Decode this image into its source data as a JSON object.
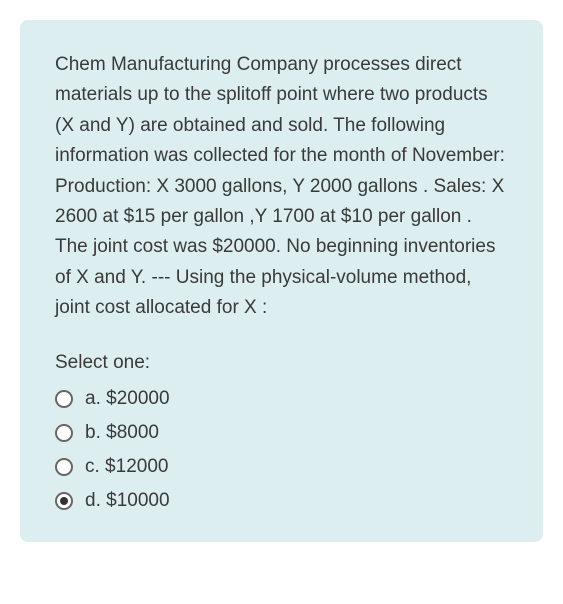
{
  "card": {
    "background_color": "#dceef0",
    "text_color": "#3a3a3a",
    "border_radius": 8
  },
  "question": {
    "text": "Chem Manufacturing Company processes direct materials up to the splitoff point where two products (X and Y) are obtained and sold. The following information was collected for the month of November: Production: X 3000 gallons, Y 2000 gallons . Sales: X 2600 at $15 per gallon ,Y 1700 at $10 per gallon . The joint cost was $20000. No beginning inventories of X and Y. --- Using the physical-volume method, joint cost allocated for X :"
  },
  "prompt": "Select one:",
  "options": [
    {
      "key": "a",
      "label": "a. $20000",
      "selected": false
    },
    {
      "key": "b",
      "label": "b. $8000",
      "selected": false
    },
    {
      "key": "c",
      "label": "c. $12000",
      "selected": false
    },
    {
      "key": "d",
      "label": "d. $10000",
      "selected": true
    }
  ]
}
